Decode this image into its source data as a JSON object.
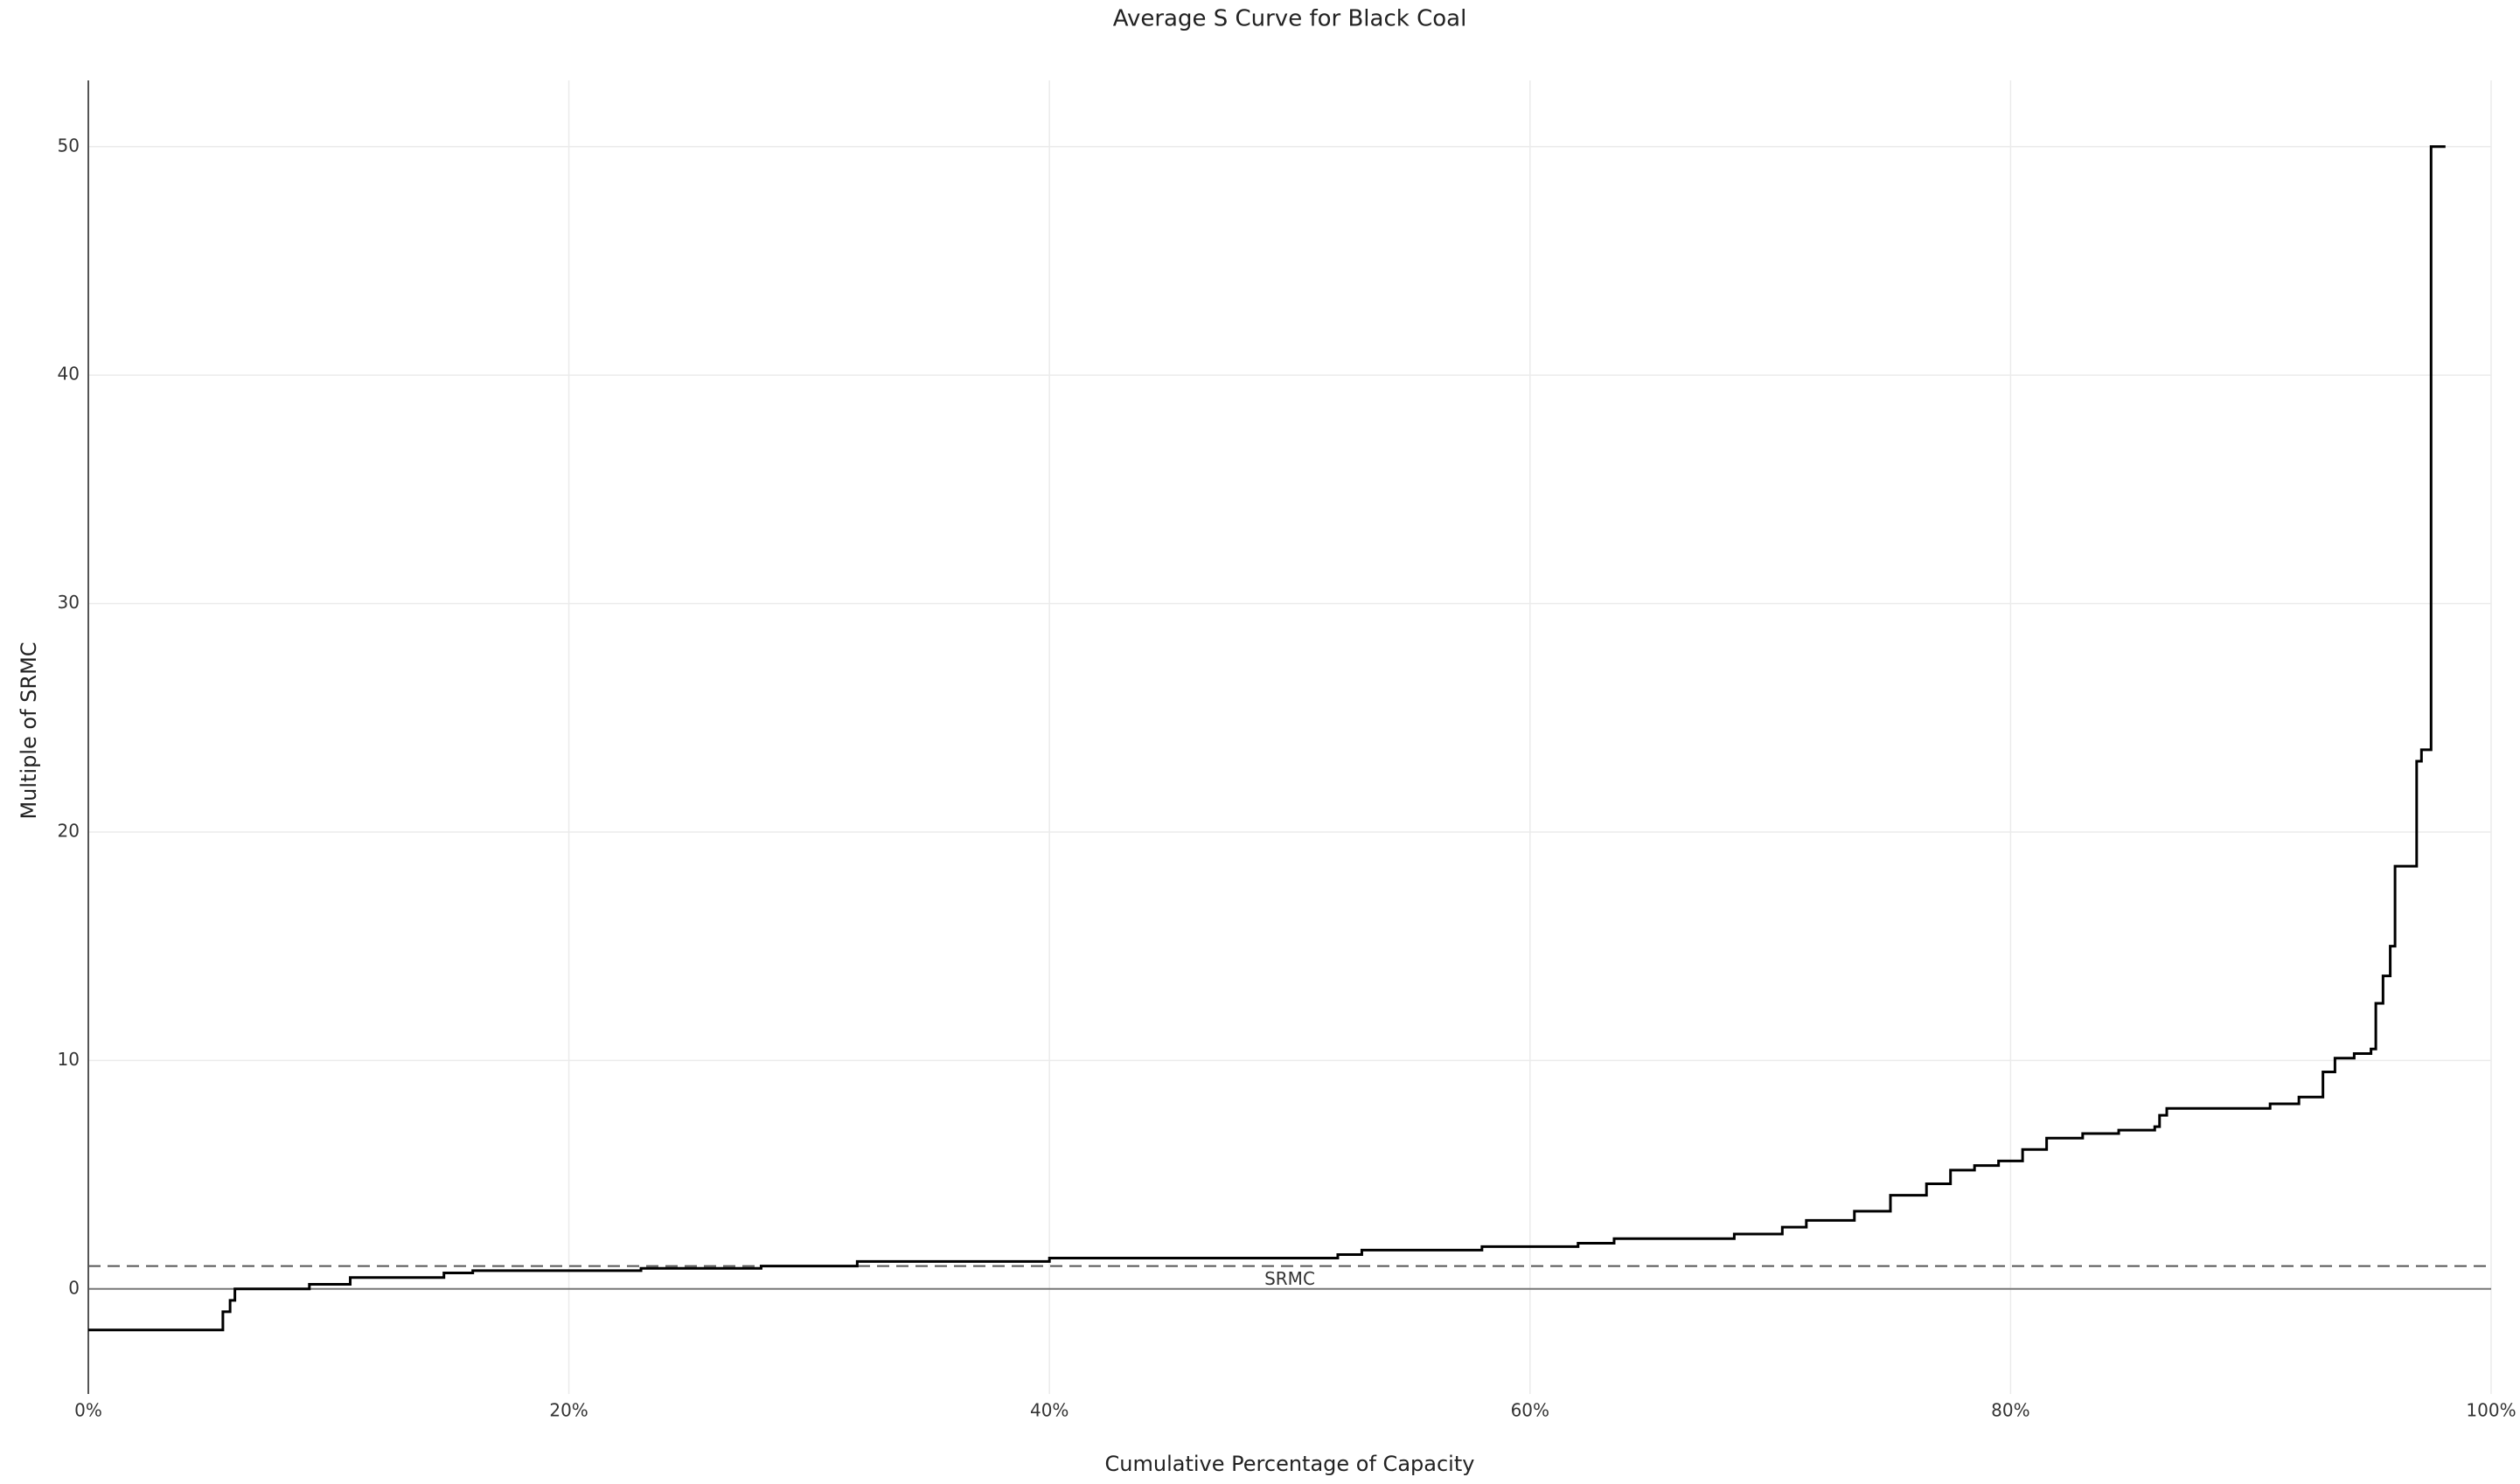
{
  "chart_data": {
    "type": "line",
    "title": "Average S Curve for Black Coal",
    "xlabel": "Cumulative Percentage of Capacity",
    "ylabel": "Multiple of SRMC",
    "line_shape": "hv",
    "grid": true,
    "xlim": [
      0,
      100
    ],
    "ylim": [
      -4.6,
      52.9
    ],
    "xticks": [
      {
        "value": 0,
        "label": "0%"
      },
      {
        "value": 20,
        "label": "20%"
      },
      {
        "value": 40,
        "label": "40%"
      },
      {
        "value": 60,
        "label": "60%"
      },
      {
        "value": 80,
        "label": "80%"
      },
      {
        "value": 100,
        "label": "100%"
      }
    ],
    "yticks": [
      0,
      10,
      20,
      30,
      40,
      50
    ],
    "reference_lines": [
      {
        "y": 1,
        "label": "SRMC",
        "dash": true
      }
    ],
    "series": [
      {
        "color": "#000000",
        "x": [
          0,
          5.6,
          5.9,
          6.1,
          9.2,
          10.9,
          14.8,
          16,
          23,
          28,
          32,
          40,
          52,
          53,
          58,
          62,
          63.5,
          68.5,
          70.5,
          71.5,
          73.5,
          75,
          76.5,
          77.5,
          78.5,
          79.5,
          80.5,
          81.5,
          83,
          84.5,
          86,
          86.2,
          86.5,
          90.8,
          92,
          93,
          93.5,
          94.3,
          95,
          95.2,
          95.5,
          95.8,
          96,
          96.9,
          97.1,
          97.5,
          98.1
        ],
        "values": [
          -1.8,
          -1.0,
          -0.5,
          0,
          0.2,
          0.5,
          0.7,
          0.8,
          0.9,
          1.0,
          1.2,
          1.35,
          1.5,
          1.7,
          1.85,
          2.0,
          2.2,
          2.4,
          2.7,
          3.0,
          3.4,
          4.1,
          4.6,
          5.2,
          5.4,
          5.6,
          6.1,
          6.6,
          6.8,
          6.95,
          7.1,
          7.6,
          7.9,
          8.1,
          8.4,
          9.5,
          10.1,
          10.3,
          10.5,
          12.5,
          13.7,
          15,
          18.5,
          23.1,
          23.6,
          50,
          50
        ]
      }
    ]
  }
}
